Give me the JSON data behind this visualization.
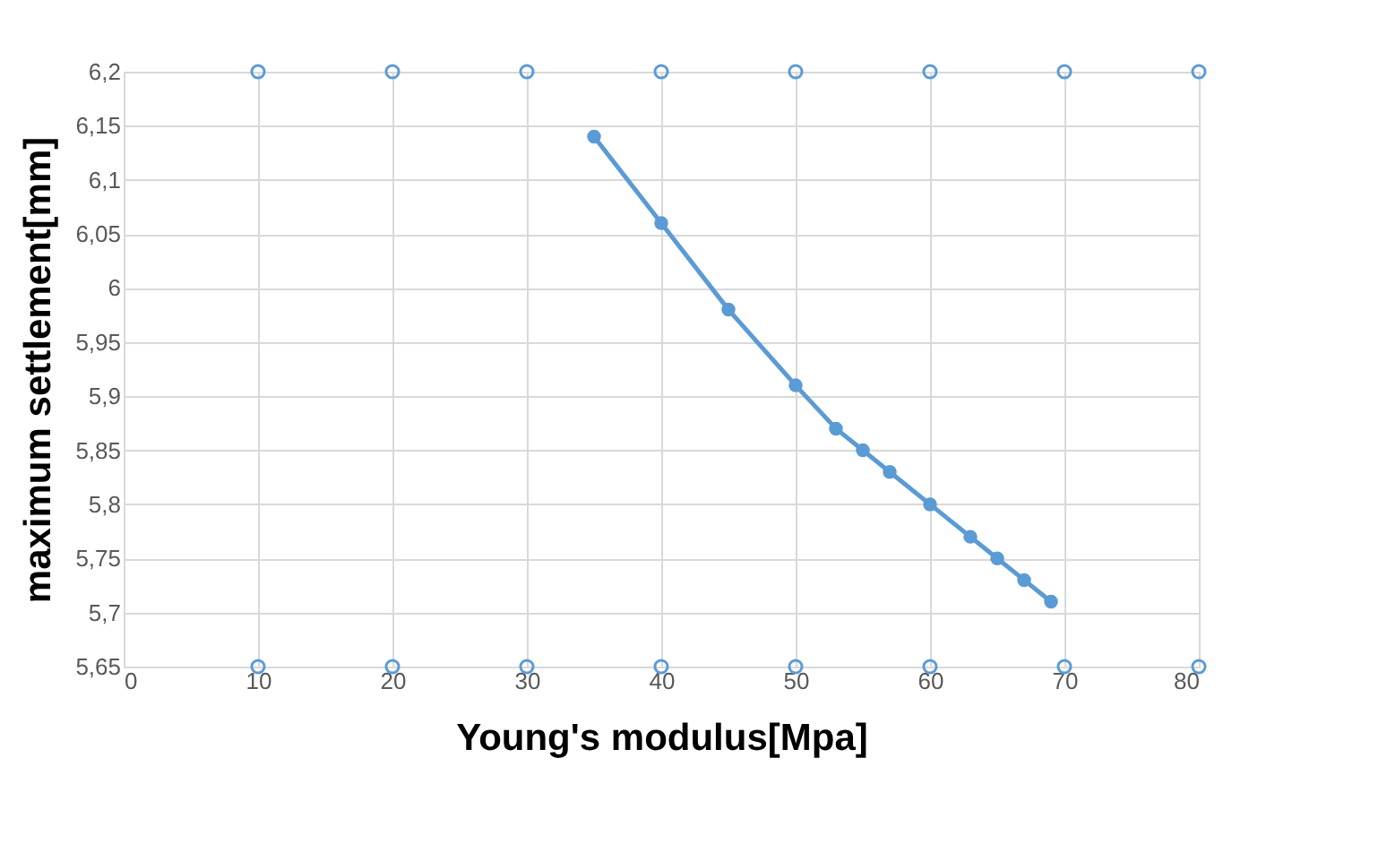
{
  "chart_data": {
    "type": "line",
    "xlabel": "Young's modulus[Mpa]",
    "ylabel": "maximum settlement[mm]",
    "xlim": [
      0,
      80
    ],
    "xticks": [
      0,
      10,
      20,
      30,
      40,
      50,
      60,
      70,
      80
    ],
    "ylim": [
      5.65,
      6.2
    ],
    "yticks": [
      {
        "value": 5.65,
        "label": "5,65"
      },
      {
        "value": 5.7,
        "label": "5,7"
      },
      {
        "value": 5.75,
        "label": "5,75"
      },
      {
        "value": 5.8,
        "label": "5,8"
      },
      {
        "value": 5.85,
        "label": "5,85"
      },
      {
        "value": 5.9,
        "label": "5,9"
      },
      {
        "value": 5.95,
        "label": "5,95"
      },
      {
        "value": 6.0,
        "label": "6"
      },
      {
        "value": 6.05,
        "label": "6,05"
      },
      {
        "value": 6.1,
        "label": "6,1"
      },
      {
        "value": 6.15,
        "label": "6,15"
      },
      {
        "value": 6.2,
        "label": "6,2"
      }
    ],
    "grid": true,
    "marker": "circle",
    "series": [
      {
        "color": "#5b9bd5",
        "x": [
          35,
          40,
          45,
          50,
          53,
          55,
          57,
          60,
          63,
          65,
          67,
          69
        ],
        "values": [
          6.14,
          6.06,
          5.98,
          5.91,
          5.87,
          5.85,
          5.83,
          5.8,
          5.77,
          5.75,
          5.73,
          5.71
        ]
      },
      {
        "type": "scatter",
        "color": "#5b9bd5",
        "x": [
          10,
          20,
          30,
          40,
          50,
          60,
          70,
          80
        ],
        "values": [
          6.2,
          6.2,
          6.2,
          6.2,
          6.2,
          6.2,
          6.2,
          6.2
        ]
      },
      {
        "type": "scatter",
        "color": "#5b9bd5",
        "x": [
          10,
          20,
          30,
          40,
          50,
          60,
          70,
          80
        ],
        "values": [
          5.65,
          5.65,
          5.65,
          5.65,
          5.65,
          5.65,
          5.65,
          5.65
        ]
      }
    ]
  }
}
